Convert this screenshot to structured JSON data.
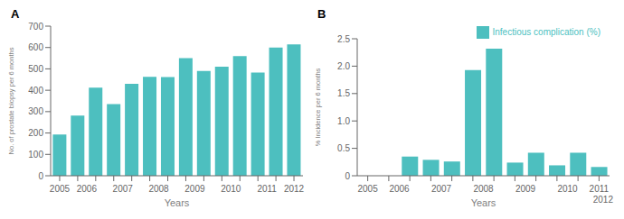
{
  "chart_data": [
    {
      "type": "bar",
      "title": "A",
      "categories": [
        "2005",
        "2006",
        null,
        "2007",
        null,
        "2008",
        null,
        "2009",
        null,
        "2010",
        null,
        "2011",
        null,
        "2012"
      ],
      "values": [
        193,
        282,
        412,
        335,
        430,
        463,
        462,
        550,
        490,
        510,
        560,
        483,
        600,
        615
      ],
      "color": "#4DBFBF",
      "xlabel": "Years",
      "ylabel": "No. of prostate biopsy per 6 months",
      "ylim": [
        0,
        700
      ],
      "yticks": [
        0,
        100,
        200,
        300,
        400,
        500,
        600,
        700
      ],
      "grid": false
    },
    {
      "type": "bar",
      "title": "B",
      "categories": [
        "2005",
        "2006",
        null,
        "2007",
        null,
        "2008",
        null,
        "2009",
        null,
        "2010",
        null,
        "2011"
      ],
      "series": [
        {
          "name": "Infectious complication (%)",
          "color": "#4DBFBF",
          "values": [
            0,
            0,
            0.35,
            0.29,
            0.26,
            1.93,
            2.32,
            0.24,
            0.42,
            0.19,
            0.42,
            0.16
          ]
        }
      ],
      "xlabel": "Years",
      "ylabel": "% Incidence per 6 months",
      "ylim": [
        0,
        2.5
      ],
      "yticks": [
        0,
        0.5,
        {
          "value": 1.0,
          "label": "1.0"
        },
        1.5,
        {
          "value": 2.0,
          "label": "2.0"
        },
        2.5
      ],
      "annotations": [
        "2012"
      ],
      "legend": "upper right",
      "grid": false
    }
  ]
}
